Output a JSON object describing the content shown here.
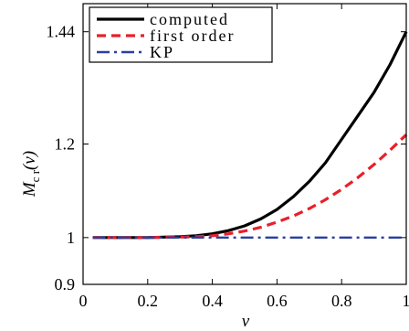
{
  "chart_data": {
    "type": "line",
    "xlabel": "ν",
    "ylabel": {
      "base": "M",
      "sub": "c r",
      "arg": "(ν)"
    },
    "xlim": [
      0,
      1
    ],
    "ylim": [
      0.9,
      1.5
    ],
    "x_ticks": [
      0,
      0.2,
      0.4,
      0.6,
      0.8,
      1
    ],
    "x_tick_labels": [
      "0",
      "0.2",
      "0.4",
      "0.6",
      "0.8",
      "1"
    ],
    "y_ticks": [
      0.9,
      1,
      1.2,
      1.44
    ],
    "y_tick_labels": [
      "0.9",
      "1",
      "1.2",
      "1.44"
    ],
    "grid": false,
    "legend_position": "top-left",
    "x": [
      0.03,
      0.1,
      0.2,
      0.3,
      0.35,
      0.4,
      0.45,
      0.5,
      0.55,
      0.6,
      0.65,
      0.7,
      0.75,
      0.8,
      0.85,
      0.9,
      0.95,
      1.0
    ],
    "series": [
      {
        "name": "computed",
        "color": "#000000",
        "style": "solid",
        "values": [
          1.0,
          1.0,
          1.0,
          1.002,
          1.004,
          1.008,
          1.015,
          1.025,
          1.04,
          1.06,
          1.087,
          1.12,
          1.16,
          1.21,
          1.26,
          1.31,
          1.37,
          1.44
        ]
      },
      {
        "name": "first order",
        "color": "#e8202a",
        "style": "dashed",
        "values": [
          1.0,
          1.0,
          1.0,
          1.001,
          1.002,
          1.004,
          1.008,
          1.014,
          1.022,
          1.033,
          1.046,
          1.062,
          1.081,
          1.103,
          1.128,
          1.156,
          1.187,
          1.22
        ]
      },
      {
        "name": "KP",
        "color": "#2b3fa0",
        "style": "dashdot",
        "values": [
          1.0,
          1.0,
          1.0,
          1.0,
          1.0,
          1.0,
          1.0,
          1.0,
          1.0,
          1.0,
          1.0,
          1.0,
          1.0,
          1.0,
          1.0,
          1.0,
          1.0,
          1.0
        ]
      }
    ]
  }
}
